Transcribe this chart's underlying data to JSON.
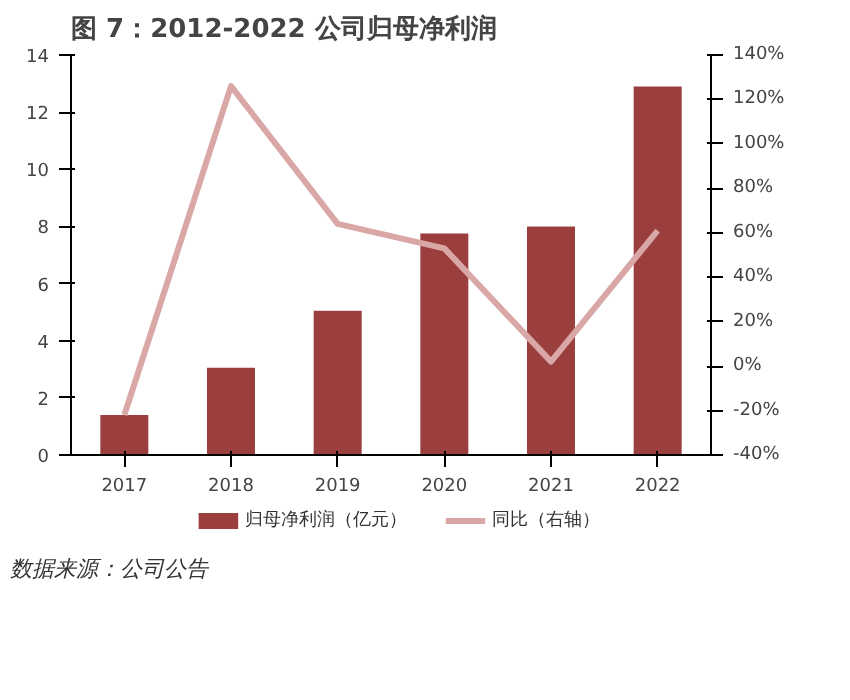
{
  "chart_data": {
    "type": "bar",
    "title": "图 7：2012-2022 公司归母净利润",
    "categories": [
      "2017",
      "2018",
      "2019",
      "2020",
      "2021",
      "2022"
    ],
    "series": [
      {
        "name": "归母净利润（亿元）",
        "color": "#9b3f3e",
        "values": [
          1.4,
          3.05,
          5.05,
          7.75,
          8.0,
          12.9
        ]
      },
      {
        "name": "同比（右轴）",
        "type": "line",
        "axis": "y2",
        "color": "#d9a7a6",
        "values": [
          -22,
          126,
          64,
          53,
          2,
          61
        ]
      }
    ],
    "ylim": [
      0,
      14
    ],
    "yticks": [
      0,
      2,
      4,
      6,
      8,
      10,
      12,
      14
    ],
    "y2lim": [
      -40,
      140
    ],
    "y2ticks": [
      {
        "value": -40,
        "label": "-40%"
      },
      {
        "value": -20,
        "label": "-20%"
      },
      {
        "value": 0,
        "label": "0%"
      },
      {
        "value": 20,
        "label": "20%"
      },
      {
        "value": 40,
        "label": "40%"
      },
      {
        "value": 60,
        "label": "60%"
      },
      {
        "value": 80,
        "label": "80%"
      },
      {
        "value": 100,
        "label": "100%"
      },
      {
        "value": 120,
        "label": "120%"
      },
      {
        "value": 140,
        "label": "140%"
      }
    ],
    "grid": false,
    "legend": "bottom",
    "marker": "none",
    "line_style": "solid",
    "annotations": [
      "数据来源：公司公告"
    ]
  }
}
